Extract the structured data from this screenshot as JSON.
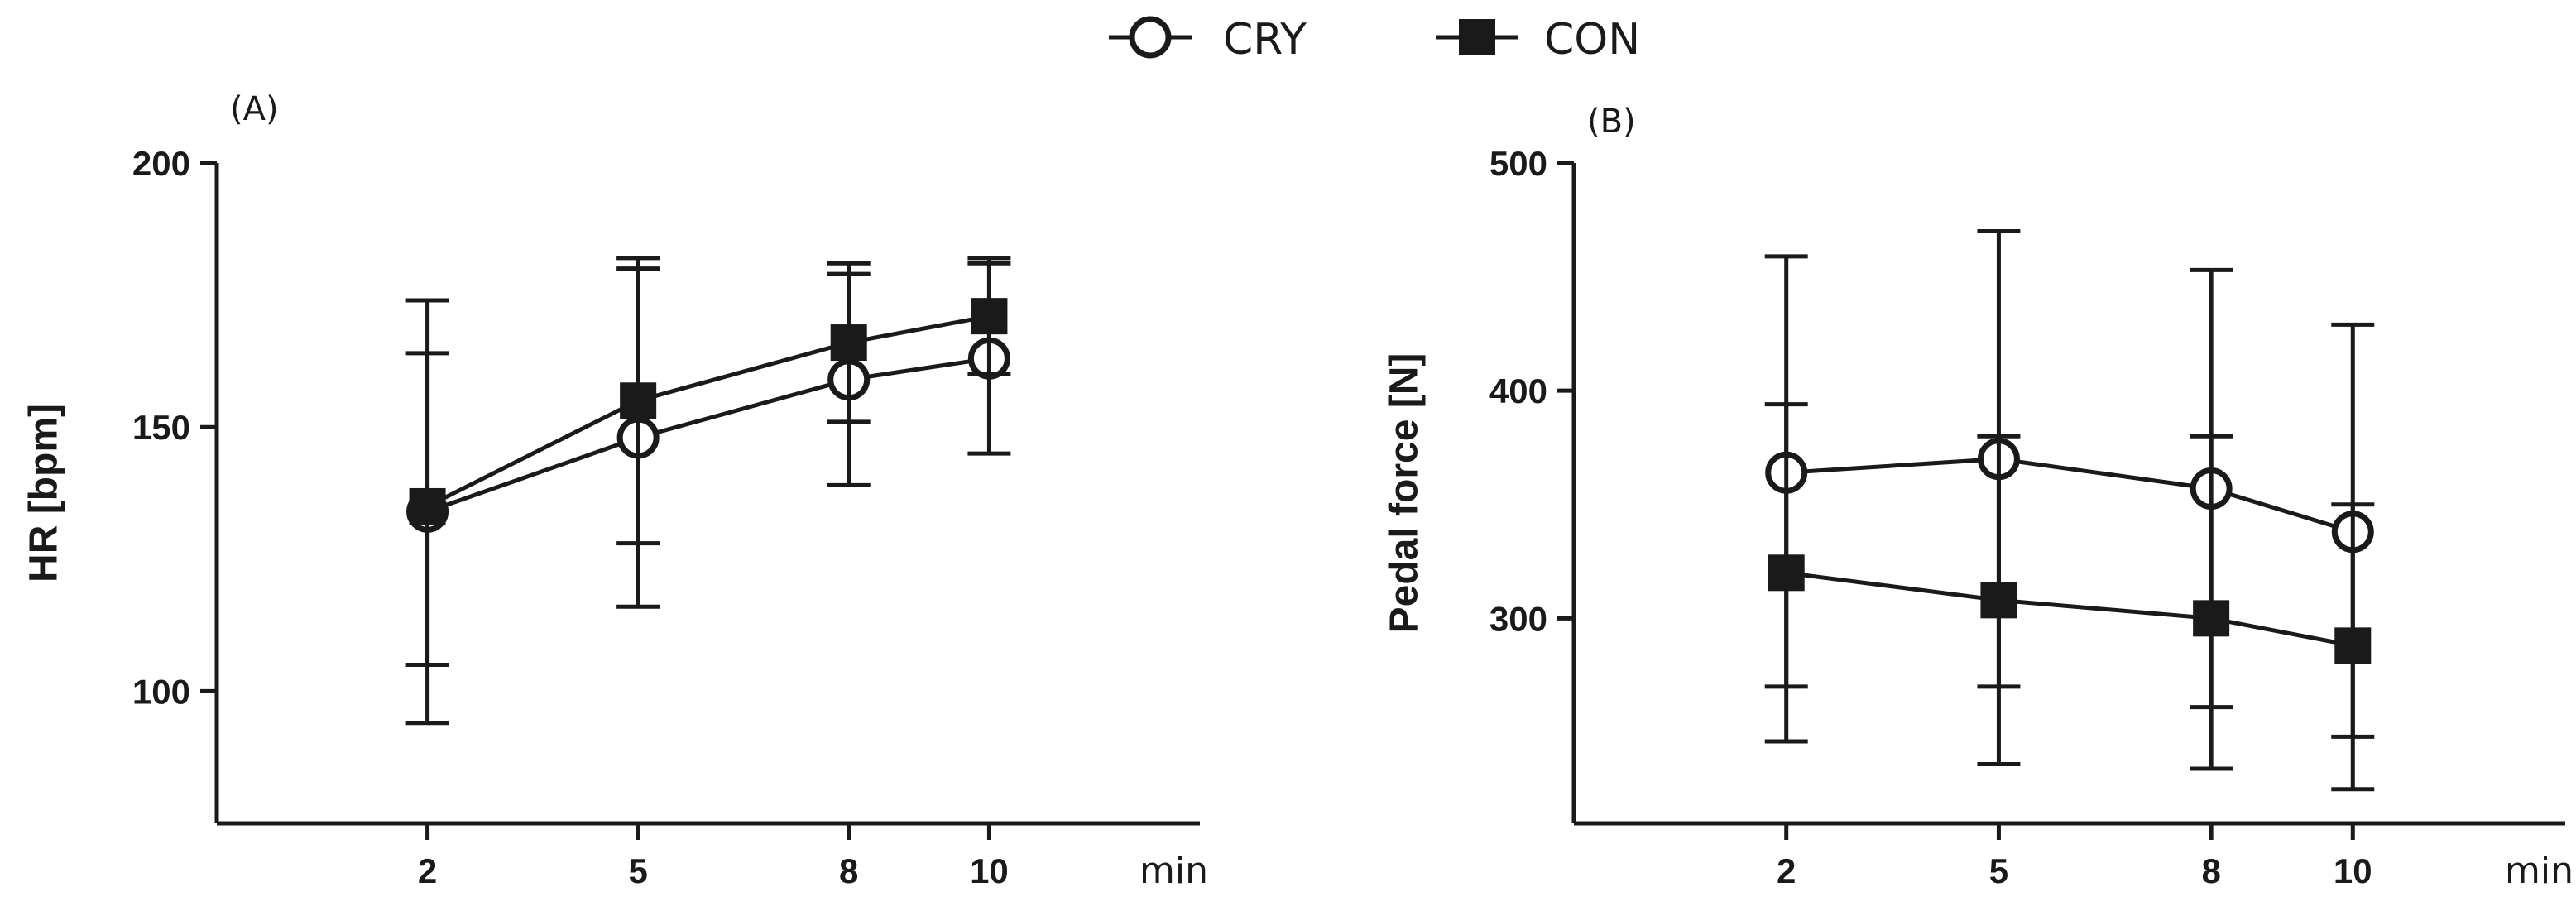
{
  "legend": [
    {
      "label": "CRY",
      "marker": "open-circle"
    },
    {
      "label": "CON",
      "marker": "filled-square"
    }
  ],
  "chart_data": [
    {
      "type": "line",
      "panel": "(A)",
      "ylabel": "HR [bpm]",
      "xunit": "min",
      "categories": [
        "2",
        "5",
        "8",
        "10"
      ],
      "x": [
        2,
        5,
        8,
        10
      ],
      "xlim": [
        -1,
        13
      ],
      "ylim": [
        75,
        200
      ],
      "yticks": [
        100,
        150,
        200
      ],
      "series": [
        {
          "name": "CRY",
          "marker": "open-circle",
          "values": [
            134,
            148,
            159,
            163
          ],
          "err_low": [
            105,
            116,
            139,
            145
          ],
          "err_high": [
            164,
            180,
            179,
            181
          ]
        },
        {
          "name": "CON",
          "marker": "filled-square",
          "values": [
            135,
            155,
            166,
            171
          ],
          "err_low": [
            94,
            128,
            151,
            160
          ],
          "err_high": [
            174,
            182,
            181,
            182
          ]
        }
      ]
    },
    {
      "type": "line",
      "panel": "(B)",
      "ylabel": "Pedal force [N]",
      "xunit": "min",
      "categories": [
        "2",
        "5",
        "8",
        "10"
      ],
      "x": [
        2,
        5,
        8,
        10
      ],
      "xlim": [
        -1,
        13
      ],
      "ylim": [
        210,
        500
      ],
      "yticks": [
        300,
        400,
        500
      ],
      "series": [
        {
          "name": "CRY",
          "marker": "open-circle",
          "values": [
            364,
            370,
            357,
            338
          ],
          "err_low": [
            270,
            270,
            261,
            248
          ],
          "err_high": [
            459,
            470,
            453,
            429
          ]
        },
        {
          "name": "CON",
          "marker": "filled-square",
          "values": [
            320,
            308,
            300,
            288
          ],
          "err_low": [
            246,
            236,
            234,
            225
          ],
          "err_high": [
            394,
            380,
            380,
            350
          ]
        }
      ]
    }
  ]
}
